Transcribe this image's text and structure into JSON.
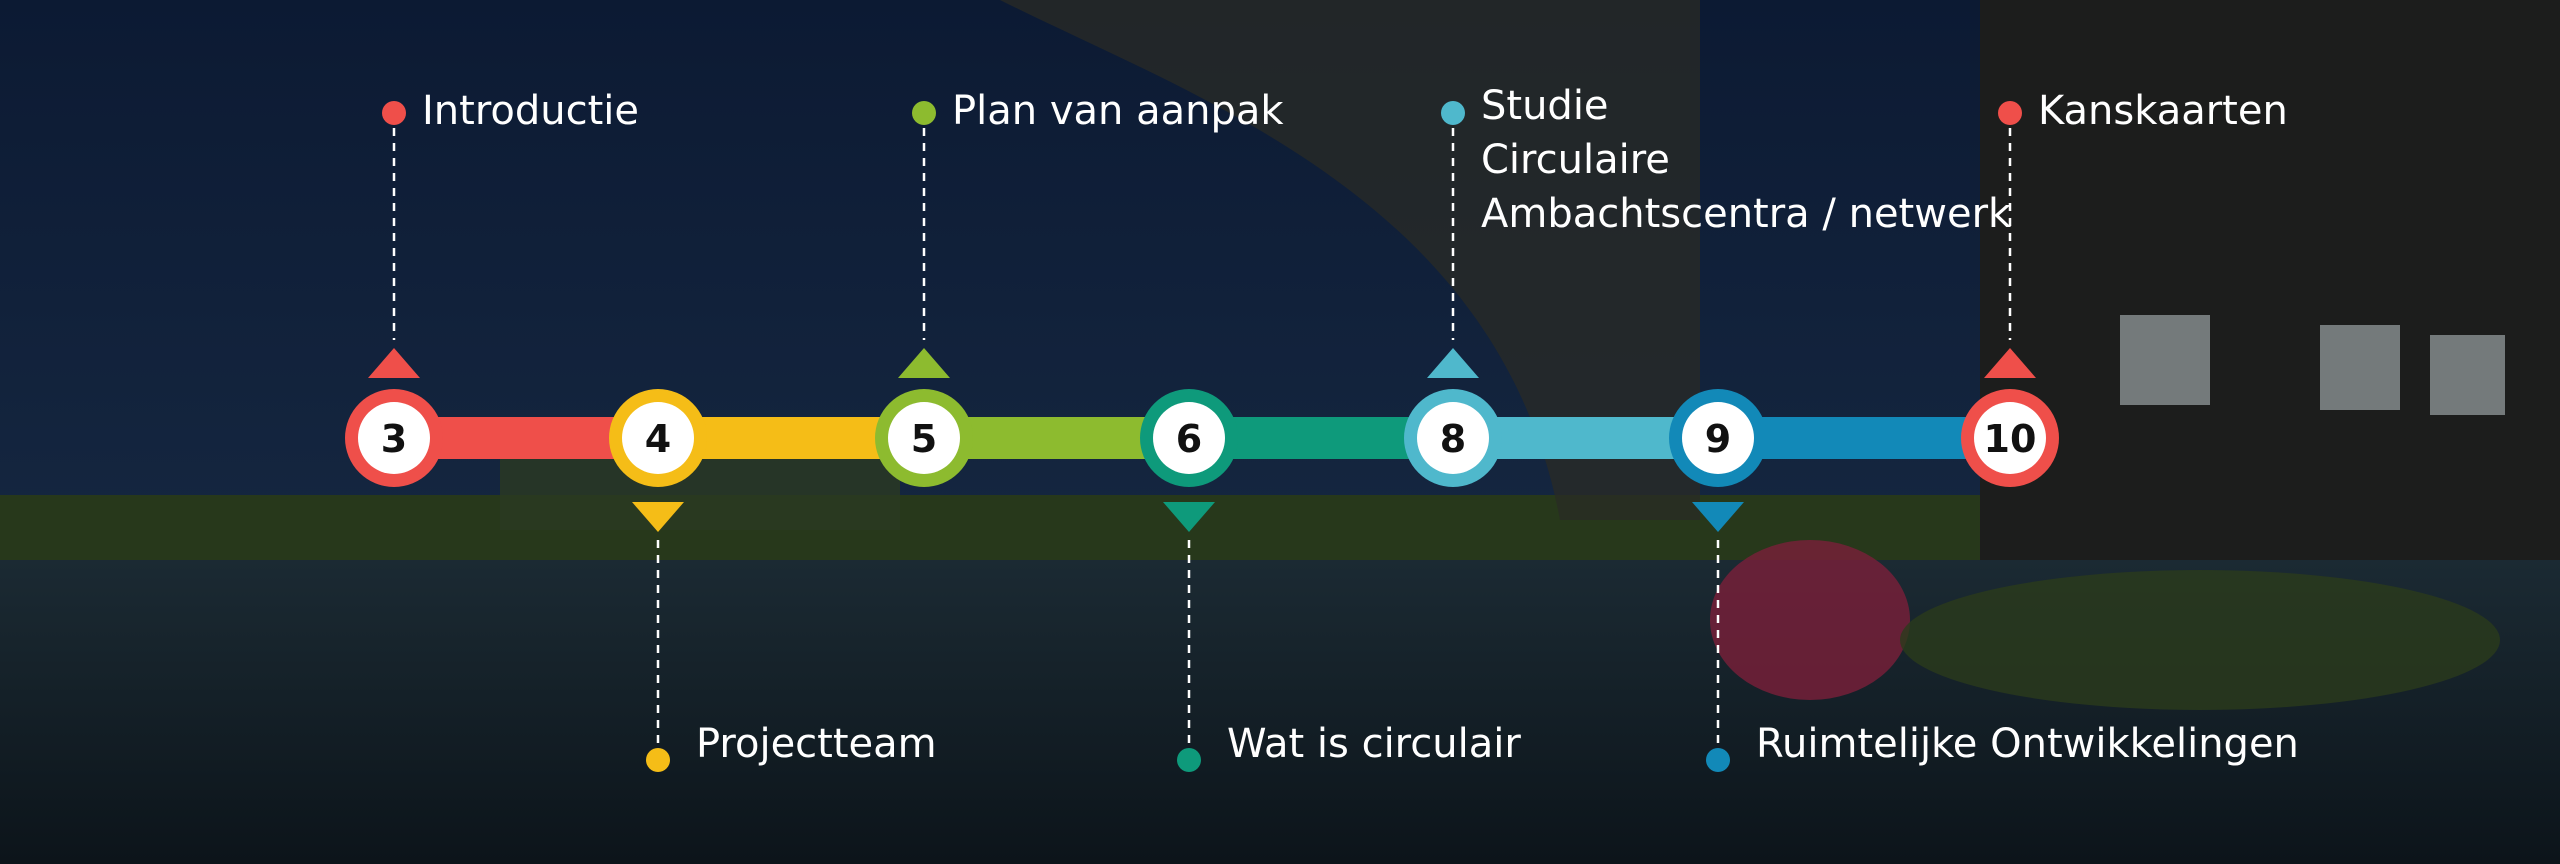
{
  "timeline": {
    "steps": [
      {
        "number": 3,
        "label": [
          "Introductie"
        ],
        "color": "#ef4f4a"
      },
      {
        "number": 4,
        "label": [
          "Projectteam"
        ],
        "color": "#f5bd17"
      },
      {
        "number": 5,
        "label": [
          "Plan van aanpak"
        ],
        "color": "#8dbb2f"
      },
      {
        "number": 6,
        "label": [
          "Wat is circulair"
        ],
        "color": "#0e9a7b"
      },
      {
        "number": 8,
        "label": [
          "Studie",
          "Circulaire",
          "Ambachtscentra / netwerk"
        ],
        "color": "#4fb8cc"
      },
      {
        "number": 9,
        "label": [
          "Ruimtelijke Ontwikkelingen"
        ],
        "color": "#1289b8"
      },
      {
        "number": 10,
        "label": [
          "Kanskaarten"
        ],
        "color": "#ef4f4a"
      }
    ]
  }
}
